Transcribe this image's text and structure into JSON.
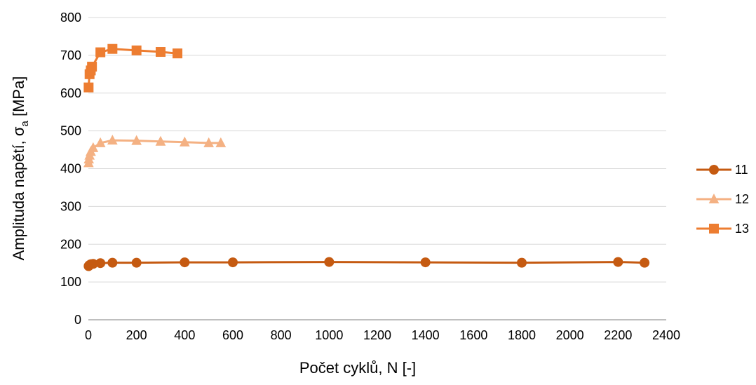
{
  "chart_data": {
    "type": "scatter",
    "xlabel": "Počet cyklů, N [-]",
    "ylabel_main": "Amplituda napětí, σ",
    "ylabel_sub": "a",
    "ylabel_unit": " [MPa]",
    "xlim": [
      0,
      2400
    ],
    "ylim": [
      0,
      800
    ],
    "x_ticks": [
      0,
      200,
      400,
      600,
      800,
      1000,
      1200,
      1400,
      1600,
      1800,
      2000,
      2200,
      2400
    ],
    "y_ticks": [
      0,
      100,
      200,
      300,
      400,
      500,
      600,
      700,
      800
    ],
    "grid": true,
    "legend_position": "right",
    "series": [
      {
        "name": "11",
        "color": "#C55A11",
        "marker": "circle",
        "x": [
          1,
          2,
          5,
          10,
          20,
          50,
          100,
          200,
          400,
          600,
          1000,
          1400,
          1800,
          2200,
          2310
        ],
        "y": [
          142,
          143,
          145,
          147,
          148,
          150,
          151,
          151,
          152,
          152,
          153,
          152,
          151,
          153,
          151
        ]
      },
      {
        "name": "12",
        "color": "#F4B183",
        "marker": "triangle",
        "x": [
          1,
          2,
          5,
          10,
          20,
          50,
          100,
          200,
          300,
          400,
          500,
          550
        ],
        "y": [
          415,
          425,
          435,
          445,
          455,
          468,
          475,
          474,
          472,
          470,
          468,
          468
        ]
      },
      {
        "name": "13",
        "color": "#ED7D31",
        "marker": "square",
        "x": [
          1,
          5,
          10,
          15,
          50,
          100,
          200,
          300,
          370
        ],
        "y": [
          615,
          650,
          660,
          670,
          708,
          717,
          713,
          709,
          705
        ]
      }
    ]
  }
}
